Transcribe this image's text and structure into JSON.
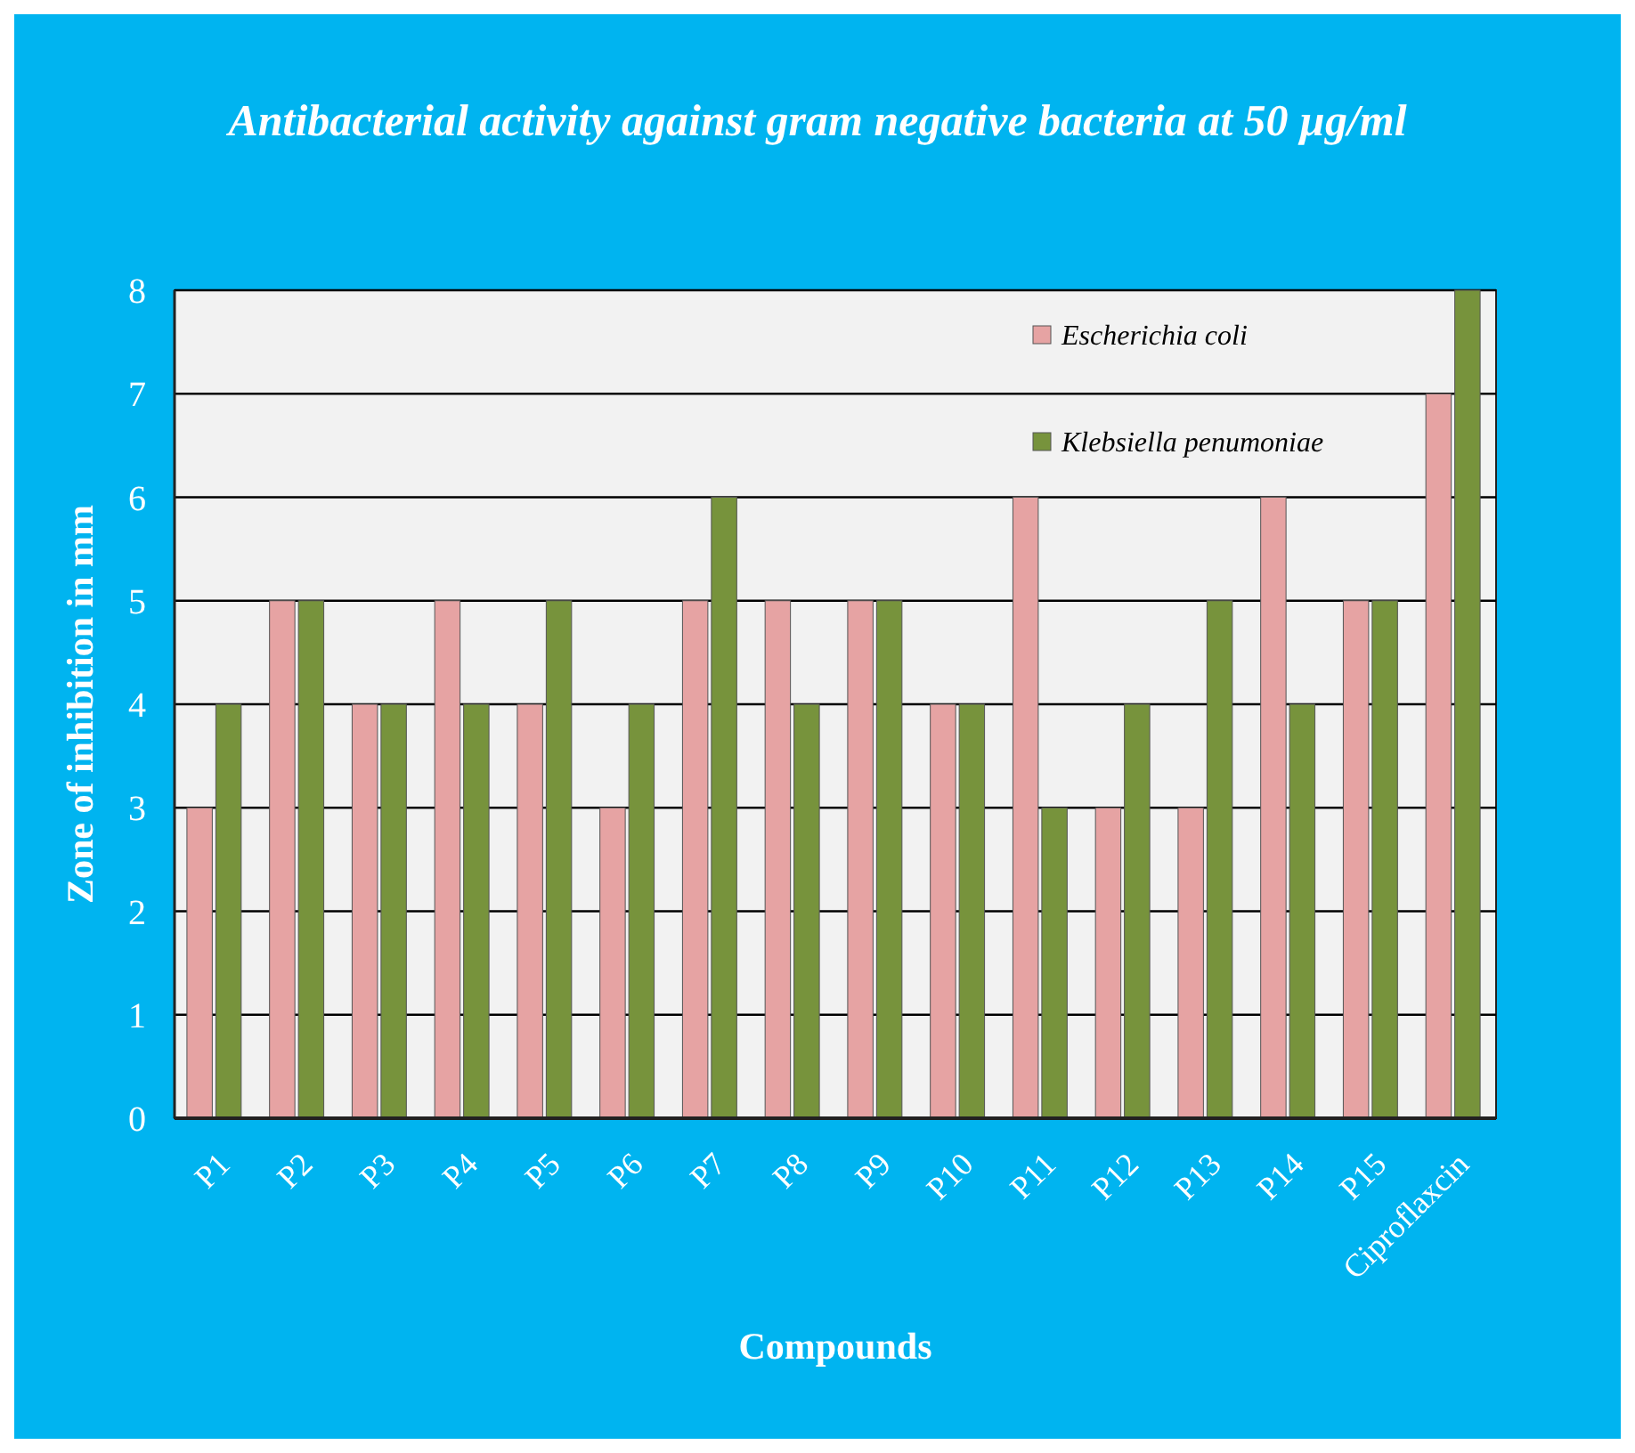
{
  "chart_data": {
    "type": "bar",
    "title": "Antibacterial activity against gram negative bacteria at 50 µg/ml",
    "xlabel": "Compounds",
    "ylabel": "Zone of inhibition in mm",
    "categories": [
      "P1",
      "P2",
      "P3",
      "P4",
      "P5",
      "P6",
      "P7",
      "P8",
      "P9",
      "P10",
      "P11",
      "P12",
      "P13",
      "P14",
      "P15",
      "Ciproflaxcin"
    ],
    "series": [
      {
        "name": "Escherichia coli",
        "color": "#e6a3a3",
        "values": [
          3,
          5,
          4,
          5,
          4,
          3,
          5,
          5,
          5,
          4,
          6,
          3,
          3,
          6,
          5,
          7
        ]
      },
      {
        "name": "Klebsiella penumoniae",
        "color": "#77933c",
        "values": [
          4,
          5,
          4,
          4,
          5,
          4,
          6,
          4,
          5,
          4,
          3,
          4,
          5,
          4,
          5,
          8
        ]
      }
    ],
    "ylim": [
      0,
      8
    ],
    "yticks": [
      0,
      1,
      2,
      3,
      4,
      5,
      6,
      7,
      8
    ],
    "grid": "y",
    "legend": "top right"
  }
}
